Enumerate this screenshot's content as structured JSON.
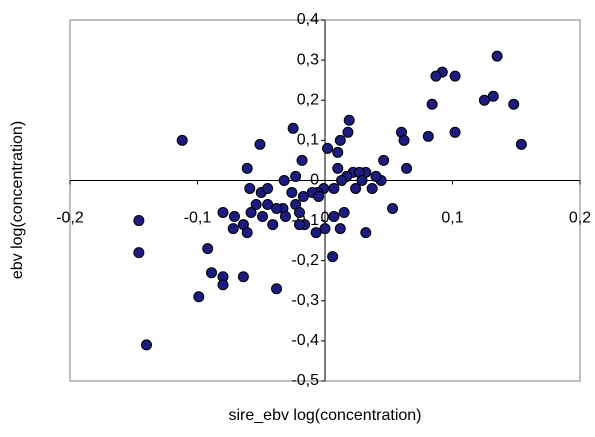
{
  "chart_data": {
    "type": "scatter",
    "x_label": "sire_ebv log(concentration)",
    "y_label": "ebv log(concentration)",
    "xlim": [
      -0.2,
      0.2
    ],
    "ylim": [
      -0.5,
      0.4
    ],
    "xticks": [
      {
        "value": -0.2,
        "label": "-0,2"
      },
      {
        "value": -0.1,
        "label": "-0,1"
      },
      0,
      {
        "value": 0.1,
        "label": "0,1"
      },
      {
        "value": 0.2,
        "label": "0,2"
      }
    ],
    "yticks": [
      {
        "value": -0.5,
        "label": "-0,5"
      },
      {
        "value": -0.4,
        "label": "-0,4"
      },
      {
        "value": -0.3,
        "label": "-0,3"
      },
      {
        "value": -0.2,
        "label": "-0,2"
      },
      {
        "value": -0.1,
        "label": "-0,1"
      },
      0,
      {
        "value": 0.1,
        "label": "0,1"
      },
      {
        "value": 0.2,
        "label": "0,2"
      },
      {
        "value": 0.3,
        "label": "0,3"
      },
      {
        "value": 0.4,
        "label": "0,4"
      }
    ],
    "color": "#1c1c80",
    "series": [
      {
        "x": [
          0.135,
          0.092,
          0.087,
          0.102,
          0.132,
          0.125,
          0.148,
          0.084,
          0.102,
          0.154,
          0.081,
          0.06,
          0.062,
          0.064,
          -0.112,
          0.019,
          0.018,
          0.012,
          0.01,
          0.01,
          0.002,
          -0.025,
          -0.051,
          -0.018,
          -0.061,
          -0.023,
          -0.032,
          -0.05,
          -0.045,
          -0.059,
          0.046,
          0.044,
          0.04,
          0.032,
          0.022,
          0.027,
          0.017,
          0.024,
          0.029,
          0.037,
          0.013,
          0.007,
          -0.001,
          -0.006,
          -0.01,
          -0.005,
          -0.017,
          -0.026,
          -0.023,
          -0.033,
          -0.045,
          -0.054,
          -0.038,
          -0.031,
          -0.02,
          -0.016,
          -0.007,
          0.0,
          -0.02,
          0.007,
          0.015,
          0.012,
          0.032,
          0.053,
          0.006,
          -0.041,
          -0.049,
          -0.058,
          -0.071,
          -0.064,
          -0.072,
          -0.08,
          -0.061,
          -0.092,
          -0.089,
          -0.08,
          -0.08,
          -0.064,
          -0.038,
          -0.099,
          -0.146,
          -0.146,
          -0.14
        ],
        "values": [
          0.31,
          0.27,
          0.26,
          0.26,
          0.21,
          0.2,
          0.19,
          0.19,
          0.12,
          0.09,
          0.11,
          0.12,
          0.1,
          0.03,
          0.1,
          0.15,
          0.12,
          0.1,
          0.07,
          0.03,
          0.08,
          0.13,
          0.09,
          0.05,
          0.03,
          0.01,
          0.0,
          -0.03,
          -0.02,
          -0.02,
          0.05,
          0.0,
          0.01,
          0.02,
          0.02,
          0.02,
          0.01,
          -0.02,
          0.0,
          -0.02,
          0.0,
          -0.02,
          -0.02,
          -0.03,
          -0.03,
          -0.04,
          -0.04,
          -0.03,
          -0.06,
          -0.07,
          -0.06,
          -0.06,
          -0.07,
          -0.09,
          -0.08,
          -0.11,
          -0.13,
          -0.12,
          -0.11,
          -0.09,
          -0.08,
          -0.12,
          -0.13,
          -0.07,
          -0.19,
          -0.11,
          -0.09,
          -0.08,
          -0.09,
          -0.11,
          -0.12,
          -0.08,
          -0.13,
          -0.17,
          -0.23,
          -0.24,
          -0.26,
          -0.24,
          -0.27,
          -0.29,
          -0.1,
          -0.18,
          -0.41
        ]
      }
    ]
  }
}
